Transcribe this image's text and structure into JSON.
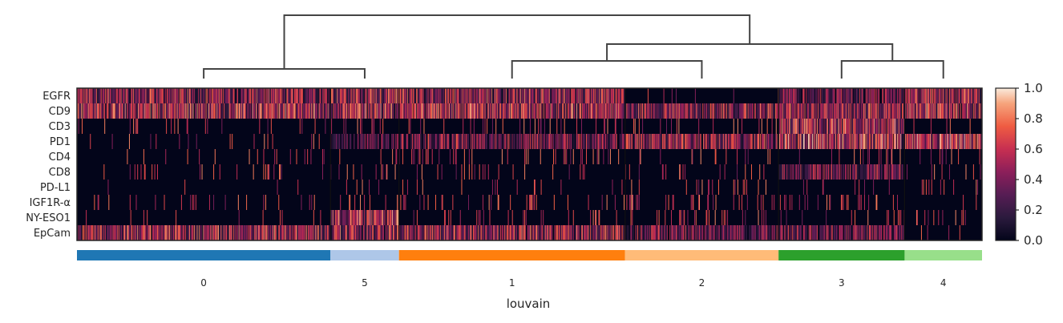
{
  "chart_data": {
    "type": "heatmap",
    "title": "",
    "xlabel": "louvain",
    "ylabel": "",
    "genes": [
      "EGFR",
      "CD9",
      "CD3",
      "PD1",
      "CD4",
      "CD8",
      "PD-L1",
      "IGF1R-α",
      "NY-ESO1",
      "EpCam"
    ],
    "groups": [
      {
        "name": "0",
        "color": "#1f77b4",
        "cells": 370
      },
      {
        "name": "5",
        "color": "#aec7e8",
        "cells": 100
      },
      {
        "name": "1",
        "color": "#ff7f0e",
        "cells": 330
      },
      {
        "name": "2",
        "color": "#ffbb78",
        "cells": 224
      },
      {
        "name": "3",
        "color": "#2ca02c",
        "cells": 184
      },
      {
        "name": "4",
        "color": "#98df8a",
        "cells": 113
      }
    ],
    "mean_expression": [
      [
        0.45,
        0.5,
        0.48,
        0.02,
        0.3,
        0.45
      ],
      [
        0.55,
        0.55,
        0.52,
        0.45,
        0.45,
        0.55
      ],
      [
        0.02,
        0.03,
        0.04,
        0.05,
        0.55,
        0.02
      ],
      [
        0.02,
        0.2,
        0.35,
        0.45,
        0.6,
        0.6
      ],
      [
        0.03,
        0.02,
        0.05,
        0.03,
        0.03,
        0.02
      ],
      [
        0.03,
        0.02,
        0.04,
        0.03,
        0.35,
        0.02
      ],
      [
        0.01,
        0.01,
        0.02,
        0.03,
        0.02,
        0.02
      ],
      [
        0.03,
        0.05,
        0.05,
        0.05,
        0.05,
        0.03
      ],
      [
        0.01,
        0.55,
        0.04,
        0.05,
        0.03,
        0.02
      ],
      [
        0.5,
        0.5,
        0.48,
        0.35,
        0.35,
        0.02
      ]
    ],
    "dendrogram": {
      "leaf_order": [
        "0",
        "5",
        "1",
        "2",
        "3",
        "4"
      ],
      "merges": [
        [
          "0",
          "5"
        ],
        [
          "1",
          "2"
        ],
        [
          "3",
          "4"
        ],
        [
          "1-2",
          "3-4"
        ],
        [
          "0-5",
          "1-2-3-4"
        ]
      ]
    },
    "colorbar": {
      "min": 0.0,
      "max": 1.0,
      "ticks": [
        "0.0",
        "0.2",
        "0.4",
        "0.6",
        "0.8",
        "1.0"
      ]
    }
  }
}
